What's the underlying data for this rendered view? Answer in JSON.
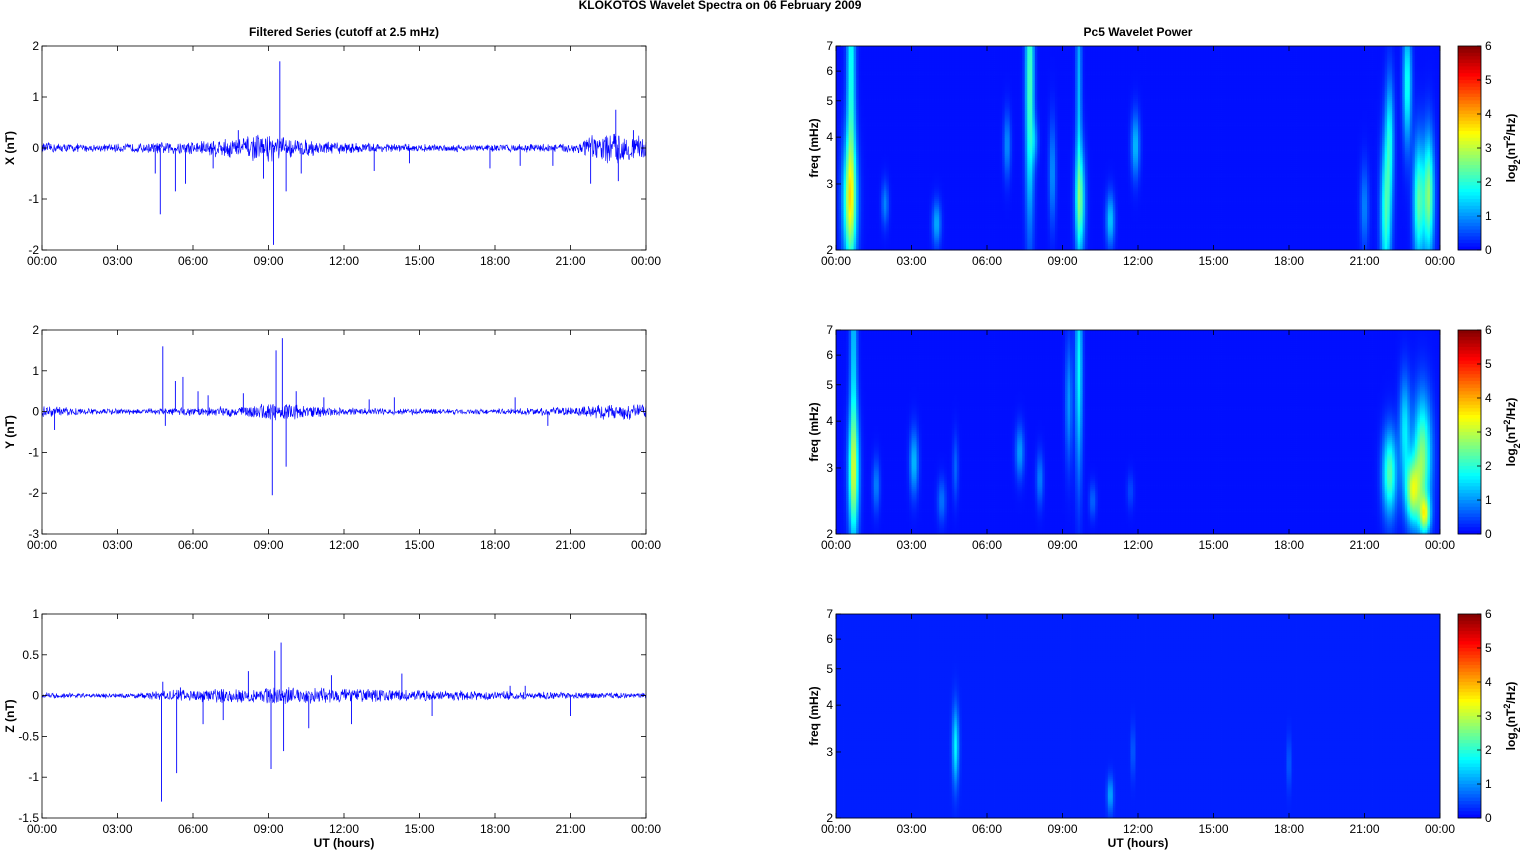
{
  "figure": {
    "title": "KLOKOTOS Wavelet Spectra on 06 February  2009",
    "left_title": "Filtered Series (cutoff at 2.5 mHz)",
    "right_title": "Pc5 Wavelet Power",
    "xlabel": "UT (hours)",
    "xticks": [
      "00:00",
      "03:00",
      "06:00",
      "09:00",
      "12:00",
      "15:00",
      "18:00",
      "21:00",
      "00:00"
    ]
  },
  "chart_data": [
    {
      "type": "line",
      "panel": "X",
      "ylabel": "X (nT)",
      "xlim": [
        0,
        24
      ],
      "ylim": [
        -2,
        2
      ],
      "yticks": [
        "2",
        "1",
        "0",
        "-1",
        "-2"
      ],
      "ytick_values": [
        2,
        1,
        0,
        -1,
        -2
      ],
      "series_color": "#0000ff",
      "noise_envelope": [
        [
          0,
          0.12
        ],
        [
          2,
          0.08
        ],
        [
          4,
          0.1
        ],
        [
          6,
          0.16
        ],
        [
          8,
          0.25
        ],
        [
          9,
          0.3
        ],
        [
          10,
          0.2
        ],
        [
          12,
          0.12
        ],
        [
          15,
          0.08
        ],
        [
          18,
          0.08
        ],
        [
          21,
          0.1
        ],
        [
          22,
          0.3
        ],
        [
          23,
          0.35
        ],
        [
          24,
          0.22
        ]
      ],
      "spikes": [
        [
          4.7,
          -1.3
        ],
        [
          4.5,
          -0.5
        ],
        [
          5.3,
          -0.85
        ],
        [
          5.7,
          -0.7
        ],
        [
          6.8,
          -0.4
        ],
        [
          7.8,
          0.35
        ],
        [
          8.8,
          -0.6
        ],
        [
          9.2,
          -1.9
        ],
        [
          9.45,
          1.7
        ],
        [
          9.7,
          -0.85
        ],
        [
          10.3,
          -0.5
        ],
        [
          13.2,
          -0.45
        ],
        [
          14.6,
          -0.3
        ],
        [
          17.8,
          -0.4
        ],
        [
          19.0,
          -0.35
        ],
        [
          20.3,
          -0.35
        ],
        [
          21.8,
          -0.7
        ],
        [
          22.8,
          0.75
        ],
        [
          22.9,
          -0.65
        ],
        [
          23.5,
          0.35
        ]
      ]
    },
    {
      "type": "line",
      "panel": "Y",
      "ylabel": "Y (nT)",
      "xlim": [
        0,
        24
      ],
      "ylim": [
        -3,
        2
      ],
      "yticks": [
        "2",
        "1",
        "0",
        "-1",
        "-2",
        "-3"
      ],
      "ytick_values": [
        2,
        1,
        0,
        -1,
        -2,
        -3
      ],
      "series_color": "#0000ff",
      "noise_envelope": [
        [
          0,
          0.15
        ],
        [
          2,
          0.08
        ],
        [
          4,
          0.08
        ],
        [
          6,
          0.12
        ],
        [
          8,
          0.15
        ],
        [
          9,
          0.25
        ],
        [
          10,
          0.2
        ],
        [
          12,
          0.1
        ],
        [
          15,
          0.08
        ],
        [
          18,
          0.07
        ],
        [
          21,
          0.12
        ],
        [
          22,
          0.2
        ],
        [
          24,
          0.22
        ]
      ],
      "spikes": [
        [
          0.5,
          -0.45
        ],
        [
          4.8,
          1.6
        ],
        [
          4.9,
          -0.35
        ],
        [
          5.3,
          0.75
        ],
        [
          5.6,
          0.85
        ],
        [
          6.2,
          0.5
        ],
        [
          6.6,
          0.4
        ],
        [
          8.0,
          0.45
        ],
        [
          9.15,
          -2.05
        ],
        [
          9.3,
          1.5
        ],
        [
          9.55,
          1.8
        ],
        [
          9.7,
          -1.35
        ],
        [
          10.1,
          0.5
        ],
        [
          11.2,
          0.35
        ],
        [
          13.0,
          0.3
        ],
        [
          14.0,
          0.35
        ],
        [
          18.8,
          0.35
        ],
        [
          20.1,
          -0.35
        ]
      ]
    },
    {
      "type": "line",
      "panel": "Z",
      "ylabel": "Z (nT)",
      "xlim": [
        0,
        24
      ],
      "ylim": [
        -1.5,
        1
      ],
      "yticks": [
        "1",
        "0.5",
        "0",
        "-0.5",
        "-1",
        "-1.5"
      ],
      "ytick_values": [
        1,
        0.5,
        0,
        -0.5,
        -1,
        -1.5
      ],
      "series_color": "#0000ff",
      "noise_envelope": [
        [
          0,
          0.04
        ],
        [
          2,
          0.03
        ],
        [
          4,
          0.04
        ],
        [
          5,
          0.08
        ],
        [
          8,
          0.1
        ],
        [
          10,
          0.12
        ],
        [
          12,
          0.1
        ],
        [
          14,
          0.08
        ],
        [
          16,
          0.07
        ],
        [
          18,
          0.06
        ],
        [
          20,
          0.05
        ],
        [
          22,
          0.04
        ],
        [
          24,
          0.04
        ]
      ],
      "spikes": [
        [
          4.75,
          -1.3
        ],
        [
          4.8,
          0.17
        ],
        [
          5.35,
          -0.95
        ],
        [
          5.5,
          0.1
        ],
        [
          6.4,
          -0.35
        ],
        [
          7.2,
          -0.3
        ],
        [
          8.2,
          0.3
        ],
        [
          9.1,
          -0.9
        ],
        [
          9.25,
          0.55
        ],
        [
          9.5,
          0.65
        ],
        [
          9.6,
          -0.68
        ],
        [
          10.6,
          -0.4
        ],
        [
          11.5,
          0.25
        ],
        [
          12.3,
          -0.35
        ],
        [
          14.3,
          0.27
        ],
        [
          15.5,
          -0.25
        ],
        [
          18.6,
          0.12
        ],
        [
          19.2,
          0.12
        ],
        [
          21.0,
          -0.25
        ]
      ]
    },
    {
      "type": "heatmap",
      "panel": "X",
      "ylabel": "freq (mHz)",
      "xlim": [
        0,
        24
      ],
      "ylim": [
        2,
        7
      ],
      "yscale": "log",
      "yticks": [
        "7",
        "6",
        "5",
        "4",
        "3",
        "2"
      ],
      "ytick_values": [
        7,
        6,
        5,
        4,
        3,
        2
      ],
      "colorbar_label": "log2(nT2/Hz)",
      "colorbar_ticks": [
        "6",
        "5",
        "4",
        "3",
        "2",
        "1",
        "0"
      ],
      "colorbar_values": [
        6,
        5,
        4,
        3,
        2,
        1,
        0
      ],
      "background_value": 0.1,
      "blobs": [
        [
          0.55,
          2.7,
          0.2,
          1.3,
          2.6
        ],
        [
          0.6,
          5.6,
          0.12,
          2.0,
          1.8
        ],
        [
          1.95,
          2.65,
          0.1,
          1.1,
          0.8
        ],
        [
          4.0,
          2.35,
          0.12,
          1.1,
          1.1
        ],
        [
          6.8,
          3.8,
          0.1,
          1.15,
          0.9
        ],
        [
          7.7,
          5.6,
          0.12,
          1.8,
          2.2
        ],
        [
          7.9,
          3.9,
          0.1,
          1.1,
          0.7
        ],
        [
          8.6,
          3.2,
          0.1,
          1.25,
          0.9
        ],
        [
          9.7,
          2.7,
          0.14,
          1.25,
          2.0
        ],
        [
          9.65,
          5.3,
          0.08,
          2.0,
          1.1
        ],
        [
          10.9,
          2.4,
          0.12,
          1.12,
          1.3
        ],
        [
          11.9,
          3.8,
          0.12,
          1.15,
          1.2
        ],
        [
          21.0,
          2.6,
          0.12,
          1.2,
          0.8
        ],
        [
          21.85,
          2.5,
          0.15,
          1.35,
          2.0
        ],
        [
          22.0,
          4.0,
          0.12,
          1.3,
          1.5
        ],
        [
          22.7,
          5.5,
          0.12,
          1.3,
          1.8
        ],
        [
          23.15,
          2.7,
          0.15,
          1.3,
          2.2
        ],
        [
          23.55,
          2.8,
          0.15,
          1.3,
          2.5
        ]
      ]
    },
    {
      "type": "heatmap",
      "panel": "Y",
      "ylabel": "freq (mHz)",
      "xlim": [
        0,
        24
      ],
      "ylim": [
        2,
        7
      ],
      "yscale": "log",
      "yticks": [
        "7",
        "6",
        "5",
        "4",
        "3",
        "2"
      ],
      "ytick_values": [
        7,
        6,
        5,
        4,
        3,
        2
      ],
      "colorbar_label": "log2(nT2/Hz)",
      "colorbar_ticks": [
        "6",
        "5",
        "4",
        "3",
        "2",
        "1",
        "0"
      ],
      "colorbar_values": [
        6,
        5,
        4,
        3,
        2,
        1,
        0
      ],
      "background_value": 0.1,
      "blobs": [
        [
          0.7,
          2.9,
          0.15,
          1.3,
          2.3
        ],
        [
          0.7,
          5.5,
          0.1,
          2.0,
          1.3
        ],
        [
          1.6,
          2.7,
          0.1,
          1.12,
          0.8
        ],
        [
          3.1,
          3.1,
          0.12,
          1.15,
          1.2
        ],
        [
          4.2,
          2.45,
          0.12,
          1.1,
          0.7
        ],
        [
          4.75,
          3.0,
          0.08,
          1.15,
          0.6
        ],
        [
          7.3,
          3.3,
          0.12,
          1.12,
          1.0
        ],
        [
          8.1,
          2.8,
          0.1,
          1.12,
          0.8
        ],
        [
          9.25,
          4.5,
          0.1,
          1.3,
          0.9
        ],
        [
          9.65,
          5.5,
          0.1,
          1.6,
          1.6
        ],
        [
          10.2,
          2.45,
          0.1,
          1.08,
          0.6
        ],
        [
          11.7,
          2.6,
          0.1,
          1.08,
          0.4
        ],
        [
          22.0,
          2.9,
          0.2,
          1.2,
          2.2
        ],
        [
          22.6,
          3.8,
          0.15,
          1.25,
          1.5
        ],
        [
          22.9,
          2.6,
          0.2,
          1.15,
          2.6
        ],
        [
          23.3,
          3.2,
          0.25,
          1.3,
          2.5
        ],
        [
          23.4,
          2.25,
          0.15,
          1.08,
          2.4
        ]
      ]
    },
    {
      "type": "heatmap",
      "panel": "Z",
      "ylabel": "freq (mHz)",
      "xlim": [
        0,
        24
      ],
      "ylim": [
        2,
        7
      ],
      "yscale": "log",
      "yticks": [
        "7",
        "6",
        "5",
        "4",
        "3",
        "2"
      ],
      "ytick_values": [
        7,
        6,
        5,
        4,
        3,
        2
      ],
      "colorbar_label": "log2(nT2/Hz)",
      "colorbar_ticks": [
        "6",
        "5",
        "4",
        "3",
        "2",
        "1",
        "0"
      ],
      "colorbar_values": [
        6,
        5,
        4,
        3,
        2,
        1,
        0
      ],
      "background_value": 0.2,
      "blobs": [
        [
          4.75,
          3.1,
          0.09,
          1.18,
          1.5
        ],
        [
          10.9,
          2.3,
          0.09,
          1.08,
          1.0
        ],
        [
          11.8,
          3.0,
          0.06,
          1.12,
          0.5
        ],
        [
          18.0,
          2.8,
          0.06,
          1.12,
          0.5
        ]
      ]
    }
  ],
  "colors": {
    "line": "#0000ff",
    "axes": "#000000",
    "background": "#ffffff",
    "jet_low": "#00008f",
    "jet_high": "#800000"
  }
}
